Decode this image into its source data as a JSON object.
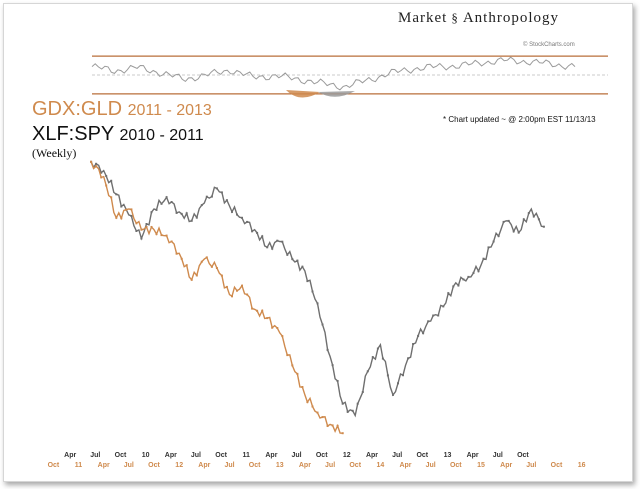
{
  "brand": {
    "left_word": "Market",
    "glyph": "§",
    "right_word": "Anthropology"
  },
  "credit": "© StockCharts.com",
  "note": "* Chart updated ~ @ 2:00pm EST 11/13/13",
  "titles": {
    "gdx_name": "GDX:GLD",
    "gdx_years": "2011 - 2013",
    "xlf_name": "XLF:SPY",
    "xlf_years": "2010 - 2011",
    "frequency": "(Weekly)"
  },
  "colors": {
    "gdx": "#cf8a4d",
    "xlf": "#9a9a9a",
    "xlf_dark": "#6f6f6f",
    "bands": "#b86f3a",
    "mid": "#bbbbbb"
  },
  "chart_data": {
    "type": "line",
    "title": "GDX:GLD 2011 - 2013 vs XLF:SPY 2010 - 2011 (Weekly)",
    "xlabel": "",
    "ylabel": "",
    "x_axis_top": {
      "series": "XLF:SPY",
      "labels": [
        "Apr",
        "Jul",
        "Oct",
        "10",
        "Apr",
        "Jul",
        "Oct",
        "11",
        "Apr",
        "Jul",
        "Oct",
        "12",
        "Apr",
        "Jul",
        "Oct",
        "13",
        "Apr",
        "Jul",
        "Oct"
      ],
      "positions": [
        0.4,
        1.0,
        1.6,
        2.2,
        2.8,
        3.4,
        4.0,
        4.6,
        5.2,
        5.8,
        6.4,
        7.0,
        7.6,
        8.2,
        8.8,
        9.4,
        10.0,
        10.6,
        11.2
      ]
    },
    "x_axis_bottom": {
      "series": "GDX:GLD",
      "labels": [
        "Oct",
        "11",
        "Apr",
        "Jul",
        "Oct",
        "12",
        "Apr",
        "Jul",
        "Oct",
        "13",
        "Apr",
        "Jul",
        "Oct",
        "14",
        "Apr",
        "Jul",
        "Oct",
        "15",
        "Apr",
        "Jul",
        "Oct",
        "16"
      ],
      "positions": [
        0.0,
        0.6,
        1.2,
        1.8,
        2.4,
        3.0,
        3.6,
        4.2,
        4.8,
        5.4,
        6.0,
        6.6,
        7.2,
        7.8,
        8.4,
        9.0,
        9.6,
        10.2,
        10.8,
        11.4,
        12.0,
        12.6
      ]
    },
    "ylim": [
      0,
      100
    ],
    "xlim": [
      -0.2,
      12.8
    ],
    "series": [
      {
        "name": "XLF:SPY 2010 - 2011",
        "x": [
          0.9,
          1.2,
          1.5,
          1.8,
          2.1,
          2.4,
          2.7,
          3.0,
          3.3,
          3.6,
          3.9,
          4.2,
          4.5,
          4.8,
          5.1,
          5.4,
          5.7,
          6.0,
          6.3,
          6.6,
          6.9,
          7.2,
          7.5,
          7.8,
          8.1,
          8.4,
          8.7,
          9.0,
          9.3,
          9.6,
          9.9,
          10.2,
          10.5,
          10.8,
          11.1,
          11.4,
          11.7
        ],
        "y": [
          96,
          93,
          85,
          78,
          70,
          80,
          84,
          79,
          76,
          82,
          87,
          81,
          77,
          73,
          67,
          69,
          63,
          59,
          48,
          30,
          14,
          10,
          25,
          34,
          17,
          27,
          37,
          42,
          47,
          55,
          57,
          61,
          69,
          76,
          72,
          80,
          74
        ],
        "color": "#9a9a9a"
      },
      {
        "name": "GDX:GLD 2011 - 2013",
        "x": [
          0.9,
          1.2,
          1.5,
          1.8,
          2.1,
          2.4,
          2.7,
          3.0,
          3.3,
          3.6,
          3.9,
          4.2,
          4.5,
          4.8,
          5.1,
          5.4,
          5.7,
          6.0,
          6.3,
          6.6,
          6.9
        ],
        "y": [
          96,
          91,
          77,
          80,
          73,
          73,
          71,
          65,
          56,
          63,
          60,
          51,
          54,
          46,
          43,
          38,
          27,
          17,
          11,
          7,
          4
        ],
        "color": "#cf8a4d"
      },
      {
        "name": "Relative strength (upper panel)",
        "x": [
          0.0,
          0.6,
          1.2,
          1.8,
          2.4,
          3.0,
          3.6,
          4.2,
          4.8,
          5.4,
          6.0,
          6.6,
          7.2,
          7.8,
          8.4,
          9.0,
          9.6,
          10.2,
          10.8,
          11.4,
          12.0,
          12.6
        ],
        "y": [
          70,
          60,
          68,
          55,
          40,
          50,
          62,
          45,
          48,
          40,
          30,
          22,
          38,
          55,
          65,
          70,
          72,
          80,
          85,
          82,
          76,
          70
        ],
        "color": "#9a9a9a"
      }
    ],
    "reference_lines": [
      {
        "name": "upper band",
        "y": 95
      },
      {
        "name": "midline",
        "y": 50
      },
      {
        "name": "lower band",
        "y": 5
      }
    ]
  }
}
